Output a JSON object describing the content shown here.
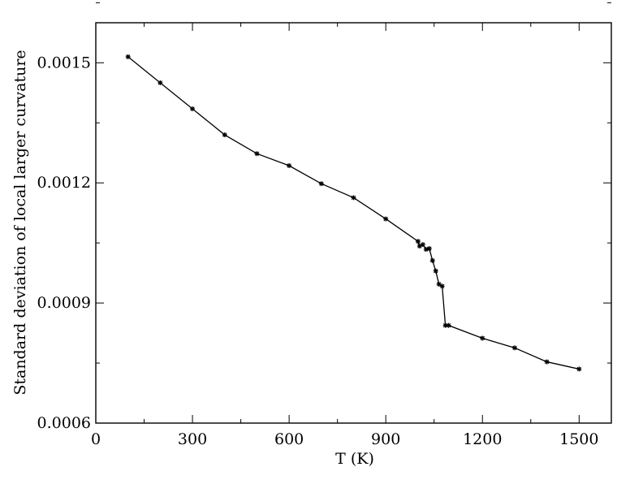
{
  "chart_data": {
    "type": "line",
    "title": "",
    "xlabel": "T (K)",
    "ylabel": "Standard deviation of local larger curvature",
    "xlim": [
      0,
      1600
    ],
    "ylim": [
      0.0006,
      0.0016
    ],
    "x_ticks": [
      0,
      300,
      600,
      900,
      1200,
      1500
    ],
    "x_tick_labels": [
      "0",
      "300",
      "600",
      "900",
      "1200",
      "1500"
    ],
    "y_ticks": [
      0.0006,
      0.0009,
      0.0012,
      0.0015
    ],
    "y_tick_labels": [
      "0.0006",
      "0.0009",
      "0.0012",
      "0.0015"
    ],
    "grid": false,
    "marker": "star",
    "line_color": "#000000",
    "series": [
      {
        "x": [
          100,
          200,
          300,
          400,
          500,
          600,
          700,
          800,
          900,
          1000,
          1005,
          1015,
          1025,
          1035,
          1045,
          1055,
          1065,
          1075,
          1085,
          1095,
          1200,
          1300,
          1400,
          1500
        ],
        "y": [
          0.001515,
          0.00145,
          0.001385,
          0.00132,
          0.001273,
          0.001243,
          0.001198,
          0.001163,
          0.00111,
          0.001054,
          0.001042,
          0.001046,
          0.001034,
          0.001036,
          0.001006,
          0.00098,
          0.000947,
          0.000942,
          0.000844,
          0.000844,
          0.000812,
          0.000788,
          0.000753,
          0.000735
        ]
      }
    ]
  }
}
